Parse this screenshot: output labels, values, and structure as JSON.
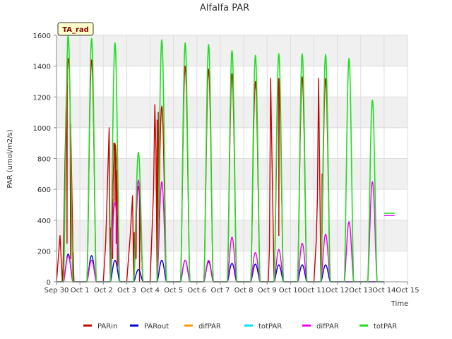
{
  "chart_data": {
    "type": "line",
    "title": "Alfalfa PAR",
    "xlabel": "Time",
    "ylabel": "PAR (umol/m2/s)",
    "ylim": [
      0,
      1600
    ],
    "xlim": [
      0,
      15
    ],
    "yticks": [
      0,
      200,
      400,
      600,
      800,
      1000,
      1200,
      1400,
      1600
    ],
    "xticks": [
      {
        "v": 0,
        "label": "Sep 30"
      },
      {
        "v": 1,
        "label": "Oct 1"
      },
      {
        "v": 2,
        "label": "Oct 2"
      },
      {
        "v": 3,
        "label": "Oct 3"
      },
      {
        "v": 4,
        "label": "Oct 4"
      },
      {
        "v": 5,
        "label": "Oct 5"
      },
      {
        "v": 6,
        "label": "Oct 6"
      },
      {
        "v": 7,
        "label": "Oct 7"
      },
      {
        "v": 8,
        "label": "Oct 8"
      },
      {
        "v": 9,
        "label": "Oct 9"
      },
      {
        "v": 10,
        "label": "Oct 10"
      },
      {
        "v": 11,
        "label": "Oct 11"
      },
      {
        "v": 12,
        "label": "Oct 12"
      },
      {
        "v": 13,
        "label": "Oct 13"
      },
      {
        "v": 14,
        "label": "Oct 14"
      },
      {
        "v": 15,
        "label": "Oct 15"
      }
    ],
    "annotation": "TA_rad",
    "grid": true,
    "legend_position": "bottom",
    "series": [
      {
        "name": "PARin",
        "color": "#cc0000",
        "days": [
          {
            "d": 0,
            "peak": 1450,
            "start": 0.25,
            "end": 0.75,
            "extra": [
              [
                0.15,
                300
              ],
              [
                0.45,
                250
              ],
              [
                0.6,
                150
              ],
              [
                0.7,
                0
              ]
            ]
          },
          {
            "d": 1,
            "peak": 1440
          },
          {
            "d": 2,
            "peak": 900,
            "extra": [
              [
                0.1,
                250
              ],
              [
                0.25,
                1000
              ],
              [
                0.3,
                350
              ],
              [
                0.35,
                400
              ],
              [
                0.4,
                150
              ],
              [
                0.45,
                900
              ],
              [
                0.5,
                500
              ],
              [
                0.55,
                250
              ],
              [
                0.6,
                100
              ],
              [
                0.7,
                0
              ]
            ]
          },
          {
            "d": 3,
            "peak": 620,
            "extra": [
              [
                0.15,
                300
              ],
              [
                0.25,
                560
              ],
              [
                0.32,
                320
              ],
              [
                0.4,
                150
              ],
              [
                0.55,
                0
              ]
            ]
          },
          {
            "d": 4,
            "peak": 1140,
            "extra": [
              [
                0.15,
                600
              ],
              [
                0.2,
                1150
              ],
              [
                0.25,
                850
              ],
              [
                0.3,
                1050
              ],
              [
                0.35,
                1100
              ]
            ]
          },
          {
            "d": 5,
            "peak": 1400
          },
          {
            "d": 6,
            "peak": 1380
          },
          {
            "d": 7,
            "peak": 1350
          },
          {
            "d": 8,
            "peak": 1300
          },
          {
            "d": 9,
            "peak": 1320,
            "extra": [
              [
                0.05,
                0
              ],
              [
                0.1,
                220
              ],
              [
                0.15,
                1320
              ],
              [
                0.5,
                300
              ]
            ]
          },
          {
            "d": 10,
            "peak": 1330
          },
          {
            "d": 11,
            "peak": 1320,
            "extra": [
              [
                0.1,
                270
              ],
              [
                0.15,
                540
              ],
              [
                0.2,
                1320
              ],
              [
                0.35,
                700
              ]
            ]
          },
          {
            "d": 12,
            "peak": 0
          },
          {
            "d": 13,
            "peak": 0
          }
        ]
      },
      {
        "name": "PARout",
        "color": "#0000cc",
        "days": [
          {
            "d": 0,
            "peak": 180
          },
          {
            "d": 1,
            "peak": 170
          },
          {
            "d": 2,
            "peak": 140
          },
          {
            "d": 3,
            "peak": 80
          },
          {
            "d": 4,
            "peak": 140
          },
          {
            "d": 5,
            "peak": 140
          },
          {
            "d": 6,
            "peak": 130
          },
          {
            "d": 7,
            "peak": 120
          },
          {
            "d": 8,
            "peak": 115
          },
          {
            "d": 9,
            "peak": 110
          },
          {
            "d": 10,
            "peak": 110
          },
          {
            "d": 11,
            "peak": 110
          },
          {
            "d": 12,
            "peak": 0
          },
          {
            "d": 13,
            "peak": 0
          }
        ]
      },
      {
        "name": "difPAR",
        "color": "#ff9900",
        "days": []
      },
      {
        "name": "totPAR",
        "color": "#00e5ee",
        "days": []
      },
      {
        "name": "difPAR",
        "color": "#ee00ee",
        "days": [
          {
            "d": 0,
            "peak": 170
          },
          {
            "d": 1,
            "peak": 140
          },
          {
            "d": 2,
            "peak": 520
          },
          {
            "d": 3,
            "peak": 660
          },
          {
            "d": 4,
            "peak": 650
          },
          {
            "d": 5,
            "peak": 140
          },
          {
            "d": 6,
            "peak": 140
          },
          {
            "d": 7,
            "peak": 290
          },
          {
            "d": 8,
            "peak": 190
          },
          {
            "d": 9,
            "peak": 210
          },
          {
            "d": 10,
            "peak": 250
          },
          {
            "d": 11,
            "peak": 310
          },
          {
            "d": 12,
            "peak": 390
          },
          {
            "d": 13,
            "peak": 650
          }
        ]
      },
      {
        "name": "totPAR",
        "color": "#22dd22",
        "days": [
          {
            "d": 0,
            "peak": 1600
          },
          {
            "d": 1,
            "peak": 1580
          },
          {
            "d": 2,
            "peak": 1550
          },
          {
            "d": 3,
            "peak": 840
          },
          {
            "d": 4,
            "peak": 1570
          },
          {
            "d": 5,
            "peak": 1550
          },
          {
            "d": 6,
            "peak": 1540
          },
          {
            "d": 7,
            "peak": 1500
          },
          {
            "d": 8,
            "peak": 1470
          },
          {
            "d": 9,
            "peak": 1480
          },
          {
            "d": 10,
            "peak": 1480
          },
          {
            "d": 11,
            "peak": 1475
          },
          {
            "d": 12,
            "peak": 1450
          },
          {
            "d": 13,
            "peak": 1180
          }
        ]
      }
    ]
  },
  "legend": [
    {
      "label": "PARin",
      "color": "#cc0000"
    },
    {
      "label": "PARout",
      "color": "#0000cc"
    },
    {
      "label": "difPAR",
      "color": "#ff9900"
    },
    {
      "label": "totPAR",
      "color": "#00e5ee"
    },
    {
      "label": "difPAR",
      "color": "#ee00ee"
    },
    {
      "label": "totPAR",
      "color": "#22dd22"
    }
  ]
}
